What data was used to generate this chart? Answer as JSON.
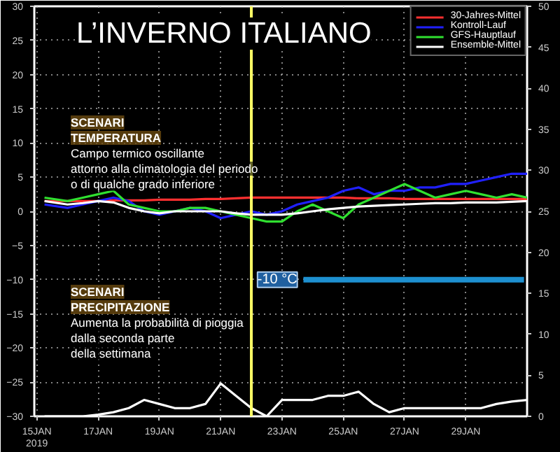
{
  "chart_data": {
    "type": "line",
    "title": "L’INVERNO ITALIANO",
    "xlim": [
      "2019-01-14T22:00",
      "2019-01-31T00:00"
    ],
    "xticks": [
      {
        "value": "2019-01-15",
        "label": "15JAN\n2019"
      },
      {
        "value": "2019-01-17",
        "label": "17JAN"
      },
      {
        "value": "2019-01-19",
        "label": "19JAN"
      },
      {
        "value": "2019-01-21",
        "label": "21JAN"
      },
      {
        "value": "2019-01-23",
        "label": "23JAN"
      },
      {
        "value": "2019-01-25",
        "label": "25JAN"
      },
      {
        "value": "2019-01-27",
        "label": "27JAN"
      },
      {
        "value": "2019-01-29",
        "label": "29JAN"
      }
    ],
    "ylim": [
      -30,
      30
    ],
    "yticks": [
      -30,
      -25,
      -20,
      -15,
      -10,
      -5,
      0,
      5,
      10,
      15,
      20,
      25,
      30
    ],
    "y2lim": [
      0,
      50
    ],
    "y2ticks": [
      0,
      5,
      10,
      15,
      20,
      25,
      30,
      35,
      40,
      45,
      50
    ],
    "x": [
      "2019-01-15T06:00",
      "2019-01-16T00:00",
      "2019-01-16T12:00",
      "2019-01-17T00:00",
      "2019-01-17T12:00",
      "2019-01-18T00:00",
      "2019-01-18T12:00",
      "2019-01-19T00:00",
      "2019-01-19T12:00",
      "2019-01-20T00:00",
      "2019-01-20T12:00",
      "2019-01-21T00:00",
      "2019-01-21T12:00",
      "2019-01-22T00:00",
      "2019-01-22T12:00",
      "2019-01-23T00:00",
      "2019-01-23T12:00",
      "2019-01-24T00:00",
      "2019-01-24T12:00",
      "2019-01-25T00:00",
      "2019-01-25T12:00",
      "2019-01-26T00:00",
      "2019-01-26T12:00",
      "2019-01-27T00:00",
      "2019-01-27T12:00",
      "2019-01-28T00:00",
      "2019-01-28T12:00",
      "2019-01-29T00:00",
      "2019-01-29T12:00",
      "2019-01-30T00:00",
      "2019-01-30T12:00",
      "2019-01-31T00:00"
    ],
    "series": [
      {
        "name": "30-Jahres-Mittel",
        "color": "#ff3030",
        "values": [
          1.5,
          1.5,
          1.5,
          1.5,
          1.6,
          1.6,
          1.6,
          1.7,
          1.7,
          1.7,
          1.8,
          1.8,
          1.9,
          2,
          2,
          2,
          2,
          2,
          2,
          2,
          1.9,
          1.9,
          1.9,
          1.8,
          1.8,
          1.8,
          1.8,
          1.8,
          1.8,
          1.8,
          1.8,
          1.8
        ]
      },
      {
        "name": "Kontroll-Lauf",
        "color": "#2020ff",
        "values": [
          1,
          0.5,
          1,
          1.5,
          2,
          1.5,
          0,
          -0.5,
          0,
          0.5,
          0,
          -1,
          -0.5,
          0,
          -0.5,
          0,
          1,
          1.5,
          2,
          3,
          3.5,
          2.5,
          3,
          3,
          3.5,
          3.5,
          4,
          4,
          4.5,
          5,
          5.5,
          5.5
        ]
      },
      {
        "name": "GFS-Hauptlauf",
        "color": "#30e030",
        "values": [
          2,
          1.5,
          2,
          2.5,
          3,
          1,
          0.5,
          0,
          0,
          0.5,
          0.5,
          0,
          -0.5,
          -1,
          -1.5,
          -1.5,
          0,
          1,
          0,
          -1,
          1,
          2,
          3,
          4,
          3,
          2,
          2.5,
          3,
          2.5,
          2,
          2.5,
          2
        ]
      },
      {
        "name": "Ensemble-Mittel",
        "color": "#ffffff",
        "values": [
          1.5,
          1,
          1.2,
          1.5,
          1.3,
          0.5,
          0,
          -0.3,
          0,
          0,
          0,
          0,
          -0.3,
          -0.5,
          -0.5,
          -0.5,
          -0.3,
          0,
          0.3,
          0.5,
          0.7,
          0.8,
          0.9,
          1,
          1.1,
          1.2,
          1.2,
          1.3,
          1.3,
          1.3,
          1.4,
          1.5
        ]
      },
      {
        "color": "#ffffff",
        "axis": "y2",
        "values": [
          0,
          0,
          0,
          0.2,
          0.5,
          1,
          2,
          1.5,
          1,
          1,
          1.5,
          4,
          2.5,
          1,
          0,
          2,
          2,
          2,
          2.5,
          2.5,
          3,
          1.5,
          0.5,
          1,
          1,
          1,
          1,
          1,
          1,
          1.5,
          1.8,
          2
        ]
      }
    ],
    "ref_lines": [
      {
        "axis": "x",
        "value": "2019-01-22",
        "color": "#ffff66"
      },
      {
        "axis": "y",
        "value": -10,
        "label": "-10 °C",
        "color": "#1e90d0"
      }
    ],
    "annotations": [
      "SCENARI",
      "TEMPERATURA",
      "Campo termico oscillante",
      "attorno alla climatologia del periodo",
      "o di qualche grado inferiore",
      "SCENARI",
      "PRECIPITAZIONE",
      "Aumenta la probabilità di pioggia",
      "dalla seconda parte",
      "della settimana"
    ],
    "grid": true,
    "legend": "top right"
  }
}
